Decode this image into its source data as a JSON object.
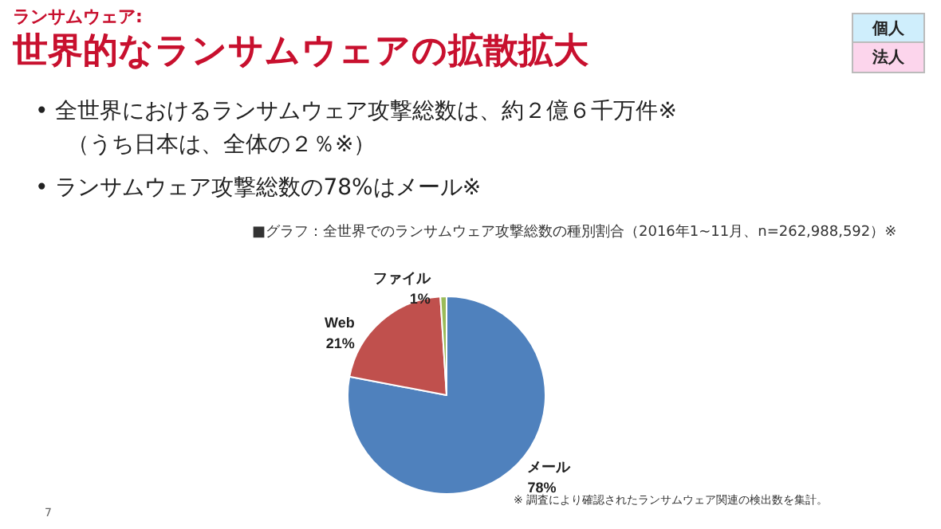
{
  "chart_data": {
    "type": "pie",
    "subtitle": "ランサムウェア:",
    "title": "世界的なランサムウェアの拡散拡大",
    "annotations": [
      "• 全世界におけるランサムウェア攻撃総数は、約２億６千万件※",
      "（うち日本は、全体の２％※）",
      "• ランサムウェア攻撃総数の78%はメール※",
      "■グラフ：全世界でのランサムウェア攻撃総数の種別割合（2016年1~11月、n=262,988,592）※",
      "個人",
      "法人",
      "※ 調査により確認されたランサムウェア関連の検出数を集計。",
      "7"
    ],
    "categories": [
      "メール",
      "Web",
      "ファイル"
    ],
    "values": [
      78,
      21,
      1
    ],
    "colors": [
      "#4f81bd",
      "#c0504d",
      "#9bbb59"
    ],
    "value_labels": [
      "78%",
      "21%",
      "1%"
    ],
    "legend": false
  }
}
